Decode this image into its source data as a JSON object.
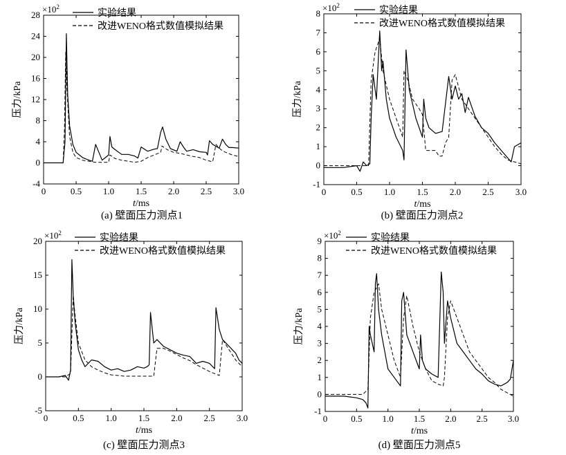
{
  "chart_data": [
    {
      "type": "line",
      "caption": "(a) 壁面压力测点1",
      "xlabel_var": "t",
      "xlabel_unit": "/ms",
      "ylabel": "压力/kPa",
      "y_multiplier": "×10",
      "y_multiplier_exp": "2",
      "xlim": [
        0,
        3.0
      ],
      "ylim": [
        -4,
        28
      ],
      "xticks": [
        "0",
        "0.5",
        "1.0",
        "1.5",
        "2.0",
        "2.5",
        "3.0"
      ],
      "yticks": [
        "-4",
        "0",
        "4",
        "8",
        "12",
        "16",
        "20",
        "24",
        "28"
      ],
      "legend": "top-right",
      "series": [
        {
          "name": "实验结果",
          "style": "solid",
          "x": [
            0,
            0.3,
            0.33,
            0.35,
            0.37,
            0.4,
            0.45,
            0.5,
            0.6,
            0.7,
            0.75,
            0.8,
            0.9,
            0.95,
            1.0,
            1.02,
            1.05,
            1.1,
            1.2,
            1.3,
            1.4,
            1.45,
            1.5,
            1.6,
            1.7,
            1.75,
            1.8,
            1.83,
            1.88,
            1.95,
            2.05,
            2.1,
            2.15,
            2.2,
            2.3,
            2.4,
            2.5,
            2.52,
            2.55,
            2.6,
            2.7,
            2.75,
            2.8,
            2.85,
            2.9,
            3.0
          ],
          "y": [
            0,
            0,
            4,
            24.5,
            13,
            7,
            3.5,
            2,
            1,
            0.5,
            0.3,
            3.5,
            0.5,
            1,
            1.5,
            5,
            3,
            2.5,
            1.6,
            1.6,
            1.3,
            0.9,
            3,
            2.2,
            2.6,
            2.7,
            5.8,
            6.8,
            4.5,
            2.7,
            2.2,
            4,
            3,
            2.2,
            2.5,
            2.1,
            2,
            1.5,
            4.2,
            3.5,
            2.8,
            4.5,
            3.5,
            2.9,
            2.9,
            2.8
          ]
        },
        {
          "name": "改进WENO格式数值模拟结果",
          "style": "dashed",
          "x": [
            0,
            0.3,
            0.32,
            0.34,
            0.36,
            0.4,
            0.45,
            0.5,
            0.6,
            0.7,
            0.8,
            0.9,
            1.0,
            1.02,
            1.1,
            1.2,
            1.3,
            1.4,
            1.5,
            1.6,
            1.7,
            1.8,
            1.82,
            1.9,
            2.0,
            2.1,
            2.2,
            2.3,
            2.4,
            2.5,
            2.6,
            2.65,
            2.7,
            2.75,
            2.8,
            2.9,
            3.0
          ],
          "y": [
            0,
            0,
            6,
            21,
            14,
            5,
            2,
            1,
            0.5,
            0.3,
            0.1,
            0.1,
            0.1,
            1.5,
            0.8,
            0.5,
            0.3,
            0.1,
            0.3,
            1,
            1.5,
            2,
            3.2,
            2.5,
            2,
            1.8,
            1.5,
            1.2,
            1,
            0.5,
            0.2,
            3.5,
            2.8,
            2.3,
            2,
            1.5,
            1.2
          ]
        }
      ]
    },
    {
      "type": "line",
      "caption": "(b) 壁面压力测点2",
      "xlabel_var": "t",
      "xlabel_unit": "/ms",
      "ylabel": "压力/kPa",
      "y_multiplier": "×10",
      "y_multiplier_exp": "2",
      "xlim": [
        0,
        3.0
      ],
      "ylim": [
        -1,
        8
      ],
      "xticks": [
        "0",
        "0.5",
        "1.0",
        "1.5",
        "2.0",
        "2.5",
        "3.0"
      ],
      "yticks": [
        "-1",
        "0",
        "1",
        "2",
        "3",
        "4",
        "5",
        "6",
        "7",
        "8"
      ],
      "legend": "top-right",
      "series": [
        {
          "name": "实验结果",
          "style": "solid",
          "x": [
            0,
            0.3,
            0.5,
            0.55,
            0.6,
            0.65,
            0.7,
            0.72,
            0.75,
            0.8,
            0.85,
            0.88,
            0.9,
            0.95,
            1.0,
            1.1,
            1.2,
            1.22,
            1.25,
            1.3,
            1.4,
            1.5,
            1.52,
            1.55,
            1.6,
            1.7,
            1.8,
            1.9,
            1.95,
            2.0,
            2.05,
            2.1,
            2.15,
            2.2,
            2.3,
            2.4,
            2.5,
            2.6,
            2.7,
            2.8,
            2.85,
            2.9,
            3.0
          ],
          "y": [
            -0.1,
            -0.1,
            0,
            -0.3,
            0.2,
            0,
            0.1,
            2.5,
            4.8,
            3.5,
            7.1,
            5,
            5.5,
            3.5,
            2.5,
            1.5,
            0.8,
            0.3,
            6.1,
            4,
            2.5,
            1.5,
            3.5,
            2.5,
            2,
            1.7,
            1.8,
            4.7,
            3.5,
            4.2,
            3.5,
            3.8,
            2.8,
            3.6,
            2.6,
            2,
            1.7,
            1.2,
            0.8,
            0.4,
            0.2,
            1,
            1.2
          ]
        },
        {
          "name": "改进WENO格式数值模拟结果",
          "style": "dashed",
          "x": [
            0,
            0.3,
            0.6,
            0.68,
            0.72,
            0.78,
            0.85,
            0.9,
            1.0,
            1.1,
            1.2,
            1.22,
            1.28,
            1.35,
            1.45,
            1.5,
            1.55,
            1.6,
            1.7,
            1.75,
            1.8,
            1.85,
            1.9,
            1.95,
            2.0,
            2.1,
            2.2,
            2.3,
            2.4,
            2.5,
            2.6,
            2.7,
            2.8,
            2.9,
            3.0
          ],
          "y": [
            0,
            0,
            0,
            0,
            4.5,
            6,
            6.7,
            5,
            3.5,
            2.5,
            1.5,
            5,
            4.5,
            3.5,
            3,
            2.7,
            0.8,
            0.8,
            0.8,
            0.5,
            0.5,
            1.2,
            1.5,
            4.5,
            4.8,
            3.5,
            3,
            2.5,
            2,
            1.5,
            1,
            0.6,
            0.3,
            0.2,
            0.1
          ]
        }
      ]
    },
    {
      "type": "line",
      "caption": "(c) 壁面压力测点3",
      "xlabel_var": "t",
      "xlabel_unit": "/ms",
      "ylabel": "压力/kPa",
      "y_multiplier": "×10",
      "y_multiplier_exp": "2",
      "xlim": [
        0,
        3.0
      ],
      "ylim": [
        -5,
        20
      ],
      "xticks": [
        "0",
        "0.5",
        "1.0",
        "1.5",
        "2.0",
        "2.5",
        "3.0"
      ],
      "yticks": [
        "-5",
        "0",
        "5",
        "10",
        "15",
        "20"
      ],
      "legend": "top-right",
      "series": [
        {
          "name": "实验结果",
          "style": "solid",
          "x": [
            0,
            0.2,
            0.3,
            0.35,
            0.38,
            0.4,
            0.42,
            0.45,
            0.5,
            0.55,
            0.6,
            0.7,
            0.8,
            0.9,
            1.0,
            1.1,
            1.2,
            1.3,
            1.4,
            1.5,
            1.55,
            1.58,
            1.6,
            1.65,
            1.7,
            1.8,
            1.9,
            2.0,
            2.1,
            2.2,
            2.3,
            2.4,
            2.5,
            2.55,
            2.58,
            2.6,
            2.65,
            2.7,
            2.8,
            2.9,
            2.95,
            3.0
          ],
          "y": [
            0,
            0,
            0.2,
            -0.5,
            1,
            17.3,
            12,
            8,
            4,
            2.5,
            1.5,
            2.5,
            2.3,
            1.5,
            1,
            1.2,
            0.8,
            1,
            1.5,
            1.3,
            1.5,
            1.8,
            9.5,
            5,
            5.5,
            4.5,
            4,
            3.5,
            3.2,
            3,
            2,
            2.3,
            2,
            1.5,
            1.2,
            10.2,
            7,
            5.5,
            4.5,
            3.5,
            2.5,
            2
          ]
        },
        {
          "name": "改进WENO格式数值模拟结果",
          "style": "dashed",
          "x": [
            0,
            0.3,
            0.38,
            0.42,
            0.45,
            0.5,
            0.6,
            0.7,
            0.8,
            0.9,
            1.0,
            1.1,
            1.2,
            1.3,
            1.4,
            1.5,
            1.6,
            1.65,
            1.7,
            1.8,
            1.9,
            2.0,
            2.1,
            2.2,
            2.3,
            2.4,
            2.5,
            2.6,
            2.65,
            2.7,
            2.8,
            2.9,
            3.0
          ],
          "y": [
            0,
            0,
            0.5,
            12,
            9,
            5,
            2.5,
            1.5,
            1,
            0.6,
            0.3,
            0.2,
            0.1,
            0.1,
            0.1,
            0.1,
            0.1,
            0.1,
            4.2,
            4.2,
            3.8,
            3.3,
            2.8,
            2.4,
            1.8,
            1.3,
            0.8,
            0.4,
            0.2,
            5.5,
            4,
            2.5,
            1.5
          ]
        }
      ]
    },
    {
      "type": "line",
      "caption": "(d) 壁面压力测点5",
      "xlabel_var": "t",
      "xlabel_unit": "/ms",
      "ylabel": "压力/kPa",
      "y_multiplier": "×10",
      "y_multiplier_exp": "2",
      "xlim": [
        0,
        3.0
      ],
      "ylim": [
        -1,
        9
      ],
      "xticks": [
        "0",
        "0.5",
        "1.0",
        "1.5",
        "2.0",
        "2.5",
        "3.0"
      ],
      "yticks": [
        "-1",
        "0",
        "1",
        "2",
        "3",
        "4",
        "5",
        "6",
        "7",
        "8",
        "9"
      ],
      "legend": "top-right",
      "series": [
        {
          "name": "实验结果",
          "style": "solid",
          "x": [
            0,
            0.3,
            0.5,
            0.6,
            0.65,
            0.68,
            0.7,
            0.72,
            0.78,
            0.8,
            0.82,
            0.85,
            0.9,
            1.0,
            1.1,
            1.2,
            1.22,
            1.25,
            1.3,
            1.4,
            1.5,
            1.52,
            1.55,
            1.6,
            1.7,
            1.8,
            1.85,
            1.88,
            1.9,
            1.95,
            2.0,
            2.1,
            2.2,
            2.3,
            2.4,
            2.5,
            2.6,
            2.7,
            2.8,
            2.9,
            2.95,
            3.0
          ],
          "y": [
            -0.1,
            -0.1,
            -0.2,
            -0.3,
            -0.5,
            -0.8,
            4,
            3.5,
            2.5,
            6.5,
            7.1,
            5,
            3.5,
            1.5,
            1,
            0.5,
            5.5,
            6,
            3.5,
            2.5,
            1.5,
            3.5,
            2,
            1.5,
            1.2,
            1,
            7.2,
            6,
            3,
            5.5,
            4.5,
            3,
            2.5,
            2,
            1.5,
            1.2,
            0.8,
            0.6,
            0.5,
            0.7,
            0.9,
            2
          ]
        },
        {
          "name": "改进WENO格式数值模拟结果",
          "style": "dashed",
          "x": [
            0,
            0.3,
            0.6,
            0.68,
            0.72,
            0.78,
            0.85,
            0.9,
            1.0,
            1.1,
            1.2,
            1.25,
            1.3,
            1.4,
            1.5,
            1.6,
            1.7,
            1.8,
            1.88,
            1.9,
            1.95,
            2.0,
            2.1,
            2.2,
            2.3,
            2.4,
            2.5,
            2.6,
            2.7,
            2.8,
            2.9,
            3.0
          ],
          "y": [
            0,
            0,
            0,
            0.3,
            4.5,
            6,
            6.5,
            5,
            3.5,
            2,
            1,
            4.5,
            5.8,
            4,
            2.5,
            1.5,
            0.8,
            0.6,
            0.5,
            1,
            4.5,
            5.5,
            4.5,
            3.5,
            2.5,
            2,
            1.5,
            1,
            0.7,
            0.3,
            0.1,
            -0.1
          ]
        }
      ]
    }
  ]
}
